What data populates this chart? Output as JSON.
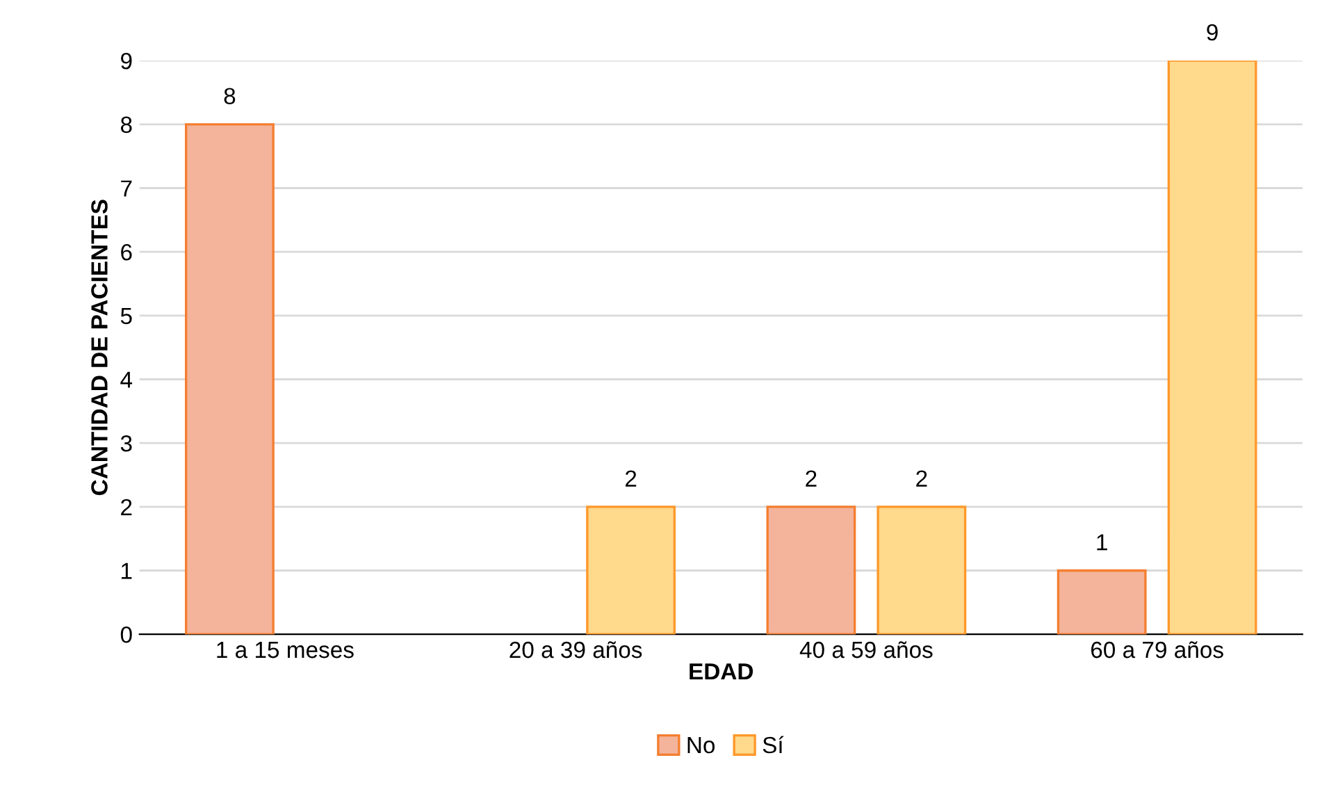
{
  "chart_data": {
    "type": "bar",
    "xlabel": "EDAD",
    "ylabel": "CANTIDAD DE PACIENTES",
    "categories": [
      "1 a 15 meses",
      "20 a 39 años",
      "40 a 59 años",
      "60 a 79 años"
    ],
    "series": [
      {
        "name": "No",
        "color": "#f4b49c",
        "values": [
          8,
          null,
          2,
          1
        ]
      },
      {
        "name": "Sí",
        "color": "#ffd98c",
        "values": [
          null,
          2,
          2,
          9
        ]
      }
    ],
    "ylim": [
      0,
      9
    ],
    "yticks": [
      0,
      1,
      2,
      3,
      4,
      5,
      6,
      7,
      8,
      9
    ],
    "grid": "y",
    "legend": "bottom",
    "data_labels": true
  }
}
